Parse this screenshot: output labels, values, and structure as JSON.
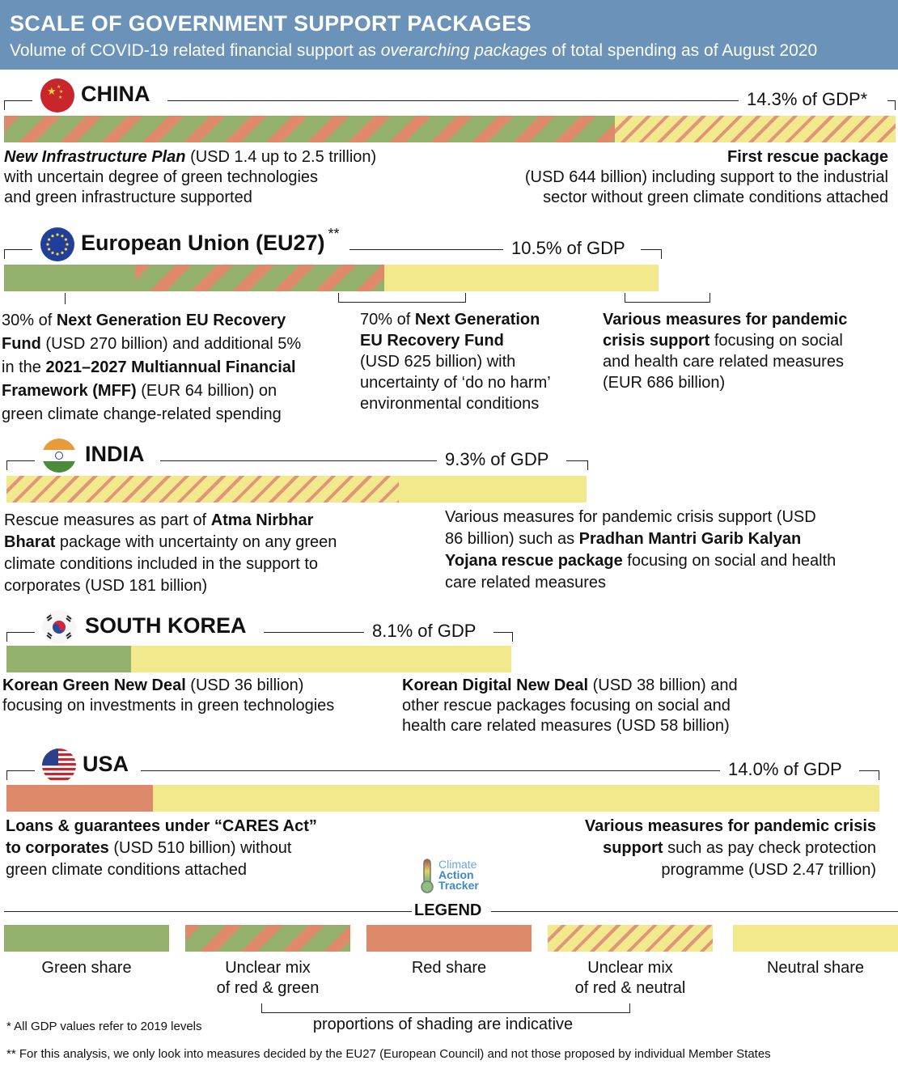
{
  "header": {
    "title": "SCALE OF GOVERNMENT SUPPORT PACKAGES",
    "subtitle": [
      {
        "t": "Volume of COVID-19 related financial support as "
      },
      {
        "t": "overarching packages",
        "i": true
      },
      {
        "t": " of total spending as of August 2020"
      }
    ]
  },
  "colors": {
    "header": "#6b93ba",
    "green": "#93b06c",
    "red": "#de8a6a",
    "neutral": "#f2e88c"
  },
  "countries": [
    {
      "name": "CHINA",
      "flag": "china-flag-icon",
      "gdp_label": "14.3% of GDP*",
      "desc": [
        [
          [
            {
              "t": "New Infrastructure Plan",
              "b": true,
              "i": true
            },
            {
              "t": " (USD 1.4 up to 2.5 trillion)"
            }
          ],
          [
            {
              "t": "with uncertain degree of green technologies"
            }
          ],
          [
            {
              "t": "and green infrastructure supported"
            }
          ]
        ],
        [
          [
            {
              "t": "First rescue package",
              "b": true
            }
          ],
          [
            {
              "t": "(USD 644 billion) including support to the industrial"
            }
          ],
          [
            {
              "t": "sector without green climate conditions attached"
            }
          ]
        ]
      ]
    },
    {
      "name": "European Union (EU27)",
      "sup": "**",
      "flag": "eu-flag-icon",
      "gdp_label": "10.5% of GDP",
      "desc": [
        [
          [
            {
              "t": "30% of "
            },
            {
              "t": "Next Generation EU Recovery",
              "b": true
            }
          ],
          [
            {
              "t": "Fund",
              "b": true
            },
            {
              "t": " (USD 270 billion) and additional 5%"
            }
          ],
          [
            {
              "t": "in the "
            },
            {
              "t": "2021–2027 Multiannual Financial",
              "b": true
            }
          ],
          [
            {
              "t": "Framework (MFF)",
              "b": true
            },
            {
              "t": " (EUR 64 billion) on"
            }
          ],
          [
            {
              "t": "green climate change-related spending"
            }
          ]
        ],
        [
          [
            {
              "t": "70% of "
            },
            {
              "t": "Next Generation",
              "b": true
            }
          ],
          [
            {
              "t": "EU Recovery Fund",
              "b": true
            }
          ],
          [
            {
              "t": "(USD 625 billion) with"
            }
          ],
          [
            {
              "t": "uncertainty of ‘do no harm’"
            }
          ],
          [
            {
              "t": "environmental conditions"
            }
          ]
        ],
        [
          [
            {
              "t": "Various measures for pandemic",
              "b": true
            }
          ],
          [
            {
              "t": "crisis support",
              "b": true
            },
            {
              "t": " focusing on social"
            }
          ],
          [
            {
              "t": "and health care related measures"
            }
          ],
          [
            {
              "t": "(EUR 686 billion)"
            }
          ]
        ]
      ]
    },
    {
      "name": "INDIA",
      "flag": "india-flag-icon",
      "gdp_label": "9.3% of GDP",
      "desc": [
        [
          [
            {
              "t": "Rescue measures as part of "
            },
            {
              "t": "Atma Nirbhar",
              "b": true
            }
          ],
          [
            {
              "t": "Bharat",
              "b": true
            },
            {
              "t": " package with uncertainty on any green"
            }
          ],
          [
            {
              "t": "climate conditions included in the support to"
            }
          ],
          [
            {
              "t": "corporates (USD 181 billion)"
            }
          ]
        ],
        [
          [
            {
              "t": "Various measures for pandemic crisis support (USD"
            }
          ],
          [
            {
              "t": "86 billion) such as "
            },
            {
              "t": "Pradhan Mantri Garib Kalyan",
              "b": true
            }
          ],
          [
            {
              "t": "Yojana rescue package",
              "b": true
            },
            {
              "t": " focusing on social and health"
            }
          ],
          [
            {
              "t": "care related measures"
            }
          ]
        ]
      ]
    },
    {
      "name": "SOUTH KOREA",
      "flag": "korea-flag-icon",
      "gdp_label": "8.1% of GDP",
      "desc": [
        [
          [
            {
              "t": "Korean Green New Deal",
              "b": true
            },
            {
              "t": " (USD 36 billion)"
            }
          ],
          [
            {
              "t": "focusing on investments in green technologies"
            }
          ]
        ],
        [
          [
            {
              "t": "Korean Digital New Deal",
              "b": true
            },
            {
              "t": " (USD 38 billion) and"
            }
          ],
          [
            {
              "t": "other rescue packages focusing on social and"
            }
          ],
          [
            {
              "t": "health care related measures (USD 58 billion)"
            }
          ]
        ]
      ]
    },
    {
      "name": "USA",
      "flag": "usa-flag-icon",
      "gdp_label": "14.0% of GDP",
      "desc": [
        [
          [
            {
              "t": "Loans & guarantees under “CARES Act”",
              "b": true
            }
          ],
          [
            {
              "t": "to corporates",
              "b": true
            },
            {
              "t": " (USD 510 billion) without"
            }
          ],
          [
            {
              "t": "green climate conditions attached"
            }
          ]
        ],
        [
          [
            {
              "t": "Various measures for pandemic crisis",
              "b": true
            }
          ],
          [
            {
              "t": "support",
              "b": true
            },
            {
              "t": " such as pay check protection"
            }
          ],
          [
            {
              "t": "programme (USD 2.47 trillion)"
            }
          ]
        ]
      ]
    }
  ],
  "chart_data": {
    "type": "bar",
    "orientation": "horizontal",
    "stacked": true,
    "unit": "% of GDP",
    "categories": [
      "CHINA",
      "European Union (EU27)",
      "INDIA",
      "SOUTH KOREA",
      "USA"
    ],
    "totals": [
      14.3,
      10.5,
      9.3,
      8.1,
      14.0
    ],
    "segments": [
      [
        {
          "type": "mix",
          "value": 9.8
        },
        {
          "type": "hat",
          "value": 4.5
        }
      ],
      [
        {
          "type": "g",
          "value": 2.1
        },
        {
          "type": "mix",
          "value": 4.0
        },
        {
          "type": "n",
          "value": 4.4
        }
      ],
      [
        {
          "type": "hat",
          "value": 6.3
        },
        {
          "type": "n",
          "value": 3.0
        }
      ],
      [
        {
          "type": "g",
          "value": 2.0
        },
        {
          "type": "n",
          "value": 6.1
        }
      ],
      [
        {
          "type": "rd",
          "value": 2.35
        },
        {
          "type": "n",
          "value": 11.65
        }
      ]
    ]
  },
  "logo": {
    "line1": "Climate",
    "line2": "Action",
    "line3": "Tracker"
  },
  "legend": {
    "title": "LEGEND",
    "items": [
      {
        "type": "g",
        "label": [
          "Green share"
        ]
      },
      {
        "type": "mix",
        "label": [
          "Unclear mix",
          "of red & green"
        ]
      },
      {
        "type": "rd",
        "label": [
          "Red share"
        ]
      },
      {
        "type": "hat",
        "label": [
          "Unclear mix",
          "of red & neutral"
        ]
      },
      {
        "type": "n",
        "label": [
          "Neutral share"
        ]
      }
    ],
    "note": "proportions of shading are indicative"
  },
  "footnotes": [
    "*  All GDP values refer to 2019 levels",
    "**  For this analysis, we only look into measures decided by the EU27 (European Council) and not those proposed by individual Member States"
  ]
}
